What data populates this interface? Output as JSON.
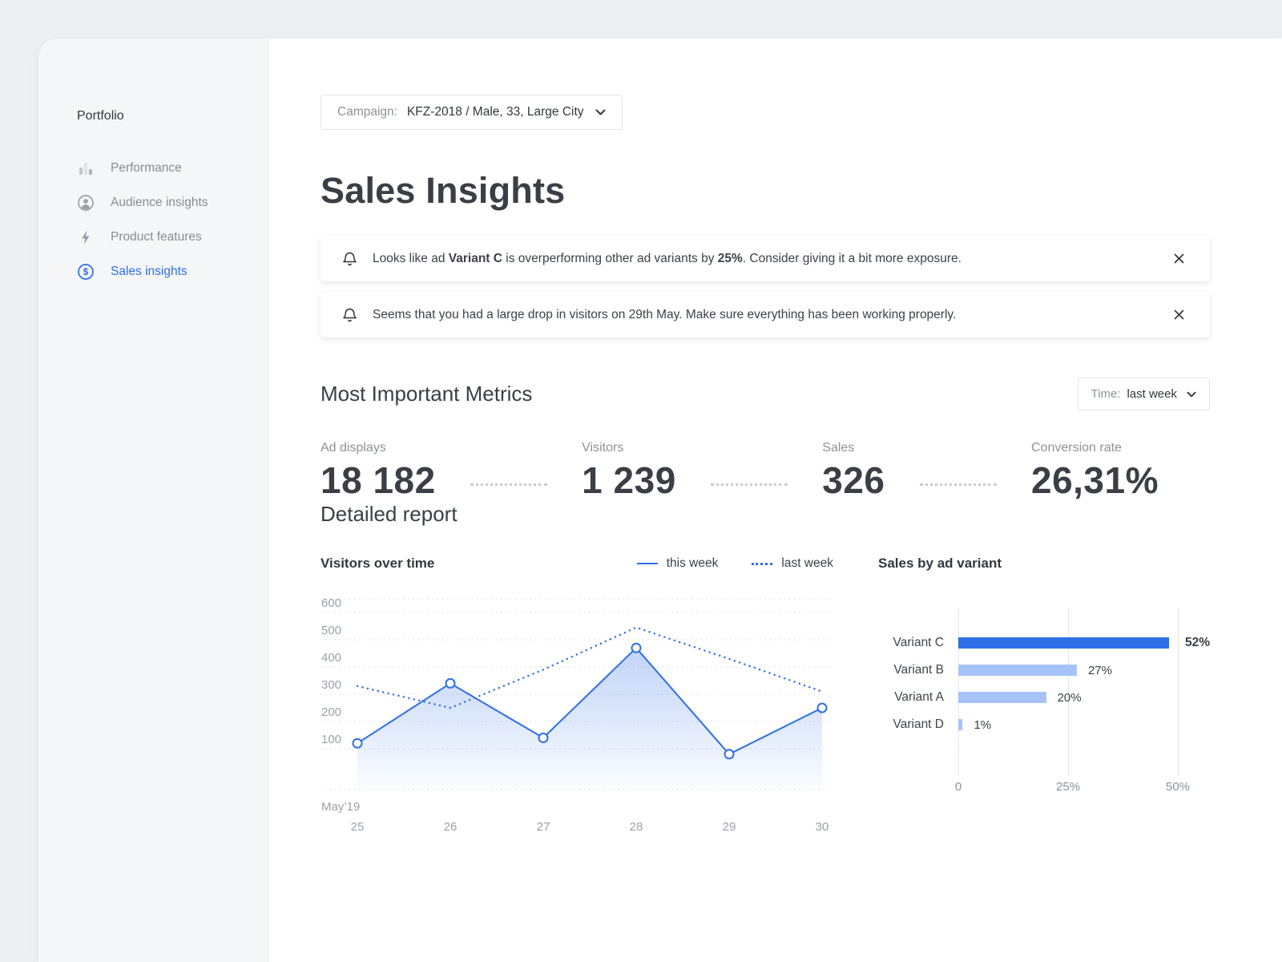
{
  "colors": {
    "accent": "#2e6ee9",
    "light_bar": "#a6c3f9",
    "grid": "#cdd2d9",
    "text_dark": "#3a3f46",
    "text_gray": "#8c929b"
  },
  "sidebar": {
    "title": "Portfolio",
    "items": [
      {
        "label": "Performance",
        "icon": "bar-chart-icon",
        "active": false
      },
      {
        "label": "Audience insights",
        "icon": "person-icon",
        "active": false
      },
      {
        "label": "Product features",
        "icon": "lightning-icon",
        "active": false
      },
      {
        "label": "Sales insights",
        "icon": "dollar-icon",
        "active": true
      }
    ]
  },
  "campaign_selector": {
    "label": "Campaign:",
    "value": "KFZ-2018 / Male, 33, Large City"
  },
  "page_title": "Sales Insights",
  "alerts": [
    {
      "segments": [
        {
          "t": "Looks like ad ",
          "b": false
        },
        {
          "t": "Variant C",
          "b": true
        },
        {
          "t": " is overperforming other ad variants by ",
          "b": false
        },
        {
          "t": "25%",
          "b": true
        },
        {
          "t": ". Consider giving it a bit more exposure.",
          "b": false
        }
      ]
    },
    {
      "segments": [
        {
          "t": "Seems that you had a large drop in visitors on 29th May. Make sure everything has been working properly.",
          "b": false
        }
      ]
    }
  ],
  "sections": {
    "metrics_title": "Most Important Metrics",
    "detailed_report_title": "Detailed report"
  },
  "time_selector": {
    "label": "Time:",
    "value": "last week"
  },
  "metrics": [
    {
      "label": "Ad displays",
      "value": "18 182"
    },
    {
      "label": "Visitors",
      "value": "1 239"
    },
    {
      "label": "Sales",
      "value": "326"
    },
    {
      "label": "Conversion rate",
      "value": "26,31%"
    }
  ],
  "chart_data": [
    {
      "type": "line",
      "title": "Visitors over time",
      "x_month_label": "May’19",
      "x": [
        25,
        26,
        27,
        28,
        29,
        30
      ],
      "series": [
        {
          "name": "this week",
          "style": "solid",
          "values": [
            120,
            340,
            140,
            470,
            80,
            250
          ]
        },
        {
          "name": "last week",
          "style": "dotted",
          "values": [
            330,
            250,
            390,
            545,
            430,
            310
          ]
        }
      ],
      "yticks": [
        100,
        200,
        300,
        400,
        500,
        600
      ],
      "ylim": [
        -50,
        650
      ],
      "grid": "horizontal-dotted",
      "legend_position": "top-right",
      "area_fill_series": "this week"
    },
    {
      "type": "bar",
      "orientation": "horizontal",
      "title": "Sales by ad variant",
      "categories": [
        "Variant C",
        "Variant B",
        "Variant A",
        "Variant D"
      ],
      "values": [
        52,
        27,
        20,
        1
      ],
      "value_labels": [
        "52%",
        "27%",
        "20%",
        "1%"
      ],
      "highlight_index": 0,
      "xticks": [
        0,
        25,
        50
      ],
      "xtick_labels": [
        "0",
        "25%",
        "50%"
      ],
      "xlim": [
        0,
        55
      ],
      "grid": "vertical-dotted"
    }
  ]
}
